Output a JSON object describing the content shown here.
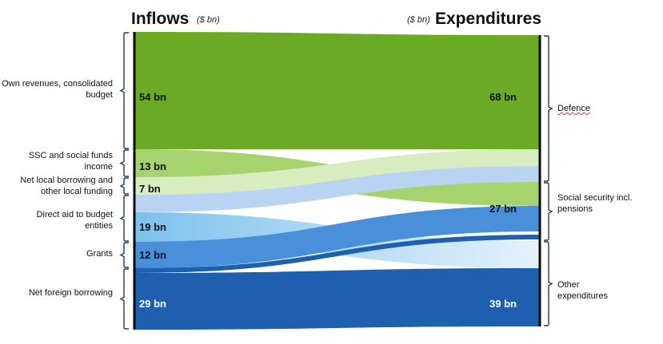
{
  "header": {
    "inflows_title": "Inflows",
    "inflows_unit": "($ bn)",
    "expenditures_unit": "($ bn)",
    "expenditures_title": "Expenditures"
  },
  "chart_data": {
    "type": "sankey",
    "unit": "$ bn",
    "sources": [
      {
        "id": "own",
        "label": "Own revenues, consolidated budget",
        "value": "54 bn",
        "v": 54,
        "color": "#6aaa25",
        "text_color": "#111111"
      },
      {
        "id": "ssc",
        "label": "SSC and social funds income",
        "value": "13 bn",
        "v": 13,
        "color": "#a6d36d",
        "text_color": "#111111"
      },
      {
        "id": "netlocal",
        "label": "Net local borrowing and other local funding",
        "value": "7 bn",
        "v": 7,
        "color": "#d7edbf",
        "text_color": "#111111"
      },
      {
        "id": "direct",
        "label": "Direct aid to budget entities",
        "value": "19 bn",
        "v": 19,
        "color": "#8ccbee",
        "text_color": "#111111"
      },
      {
        "id": "grants",
        "label": "Grants",
        "value": "12 bn",
        "v": 12,
        "color": "#4a8fd9",
        "text_color": "#111111"
      },
      {
        "id": "foreign",
        "label": "Net foreign borrowing",
        "value": "29 bn",
        "v": 29,
        "color": "#1f5fb0",
        "text_color": "#ffffff"
      }
    ],
    "targets": [
      {
        "id": "def",
        "label": "Defence",
        "value": "68 bn",
        "v": 68,
        "text_color": "#111111"
      },
      {
        "id": "soc",
        "label": "Social security incl. pensions",
        "value": "27 bn",
        "v": 27,
        "text_color": "#111111"
      },
      {
        "id": "oth",
        "label": "Other expenditures",
        "value": "39 bn",
        "v": 39,
        "text_color": "#ffffff"
      }
    ],
    "flows": [
      {
        "source": "own",
        "target": "def",
        "v": 54
      },
      {
        "source": "netlocal",
        "target": "def",
        "v": 7
      },
      {
        "source": "direct",
        "target": "def",
        "v": 7
      },
      {
        "source": "ssc",
        "target": "soc",
        "v": 13
      },
      {
        "source": "grants",
        "target": "soc",
        "v": 12
      },
      {
        "source": "foreign",
        "target": "soc",
        "v": 2
      },
      {
        "source": "direct",
        "target": "oth",
        "v": 12
      },
      {
        "source": "foreign",
        "target": "oth",
        "v": 27
      }
    ]
  }
}
